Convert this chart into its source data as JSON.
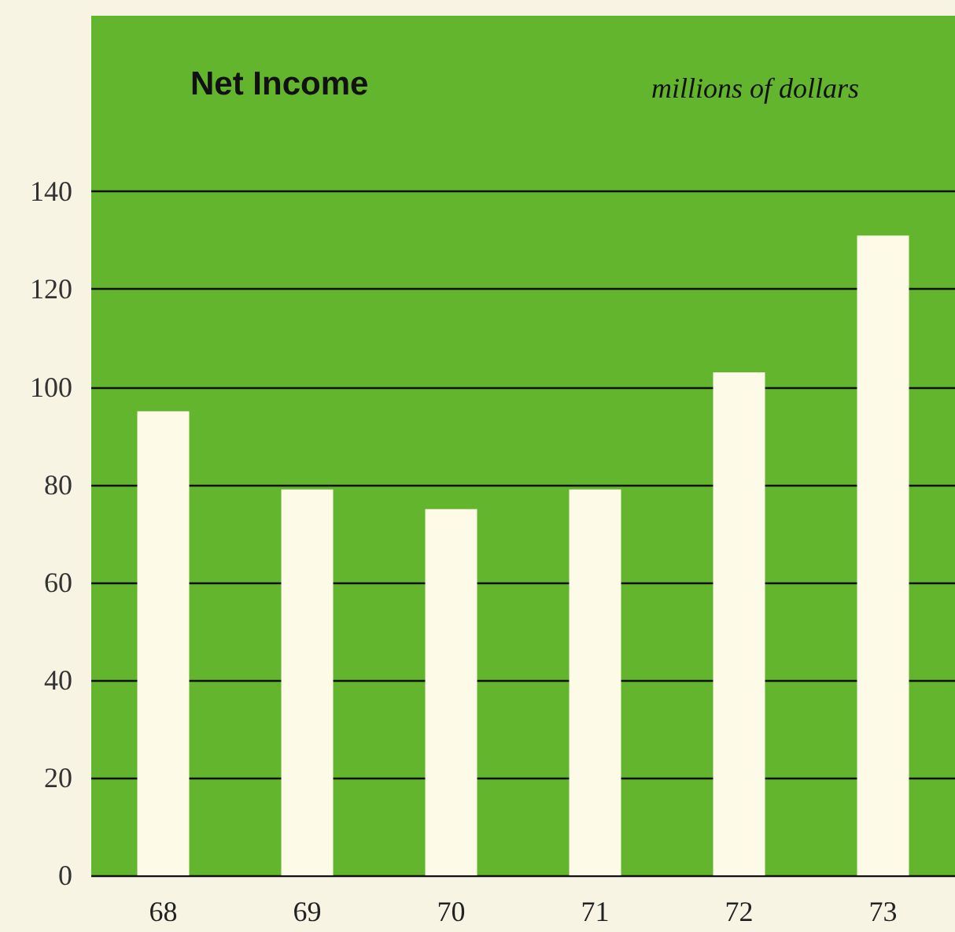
{
  "chart_data": {
    "type": "bar",
    "title": "Net Income",
    "ylabel": "millions of dollars",
    "categories": [
      "68",
      "69",
      "70",
      "71",
      "72",
      "73"
    ],
    "values": [
      95,
      79,
      75,
      79,
      103,
      131
    ],
    "color": "#fdfbe8",
    "ylim": [
      0,
      176
    ],
    "yticks": [
      0,
      20,
      40,
      60,
      80,
      100,
      120,
      140
    ],
    "grid": "y"
  }
}
